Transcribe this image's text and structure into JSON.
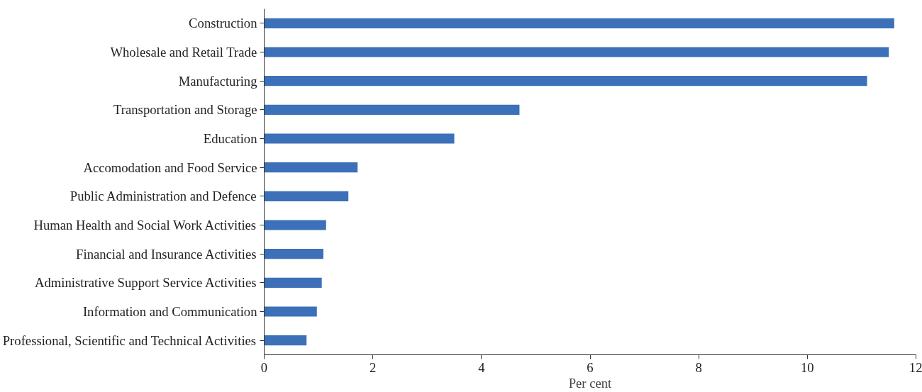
{
  "chart_data": {
    "type": "bar",
    "orientation": "horizontal",
    "xlabel": "Per cent",
    "categories": [
      "Construction",
      "Wholesale and Retail Trade",
      "Manufacturing",
      "Transportation and Storage",
      "Education",
      "Accomodation and Food Service",
      "Public Administration and Defence",
      "Human Health and Social Work Activities",
      "Financial and Insurance Activities",
      "Administrative Support Service Activities",
      "Information and Communication",
      "Professional, Scientific and Technical Activities"
    ],
    "values": [
      11.6,
      11.5,
      11.1,
      4.7,
      3.5,
      1.72,
      1.55,
      1.14,
      1.09,
      1.06,
      0.97,
      0.78
    ],
    "color": "#3c70b8",
    "xlim": [
      0,
      12
    ],
    "xticks": [
      0,
      2,
      4,
      6,
      8,
      10,
      12
    ],
    "grid": false
  }
}
